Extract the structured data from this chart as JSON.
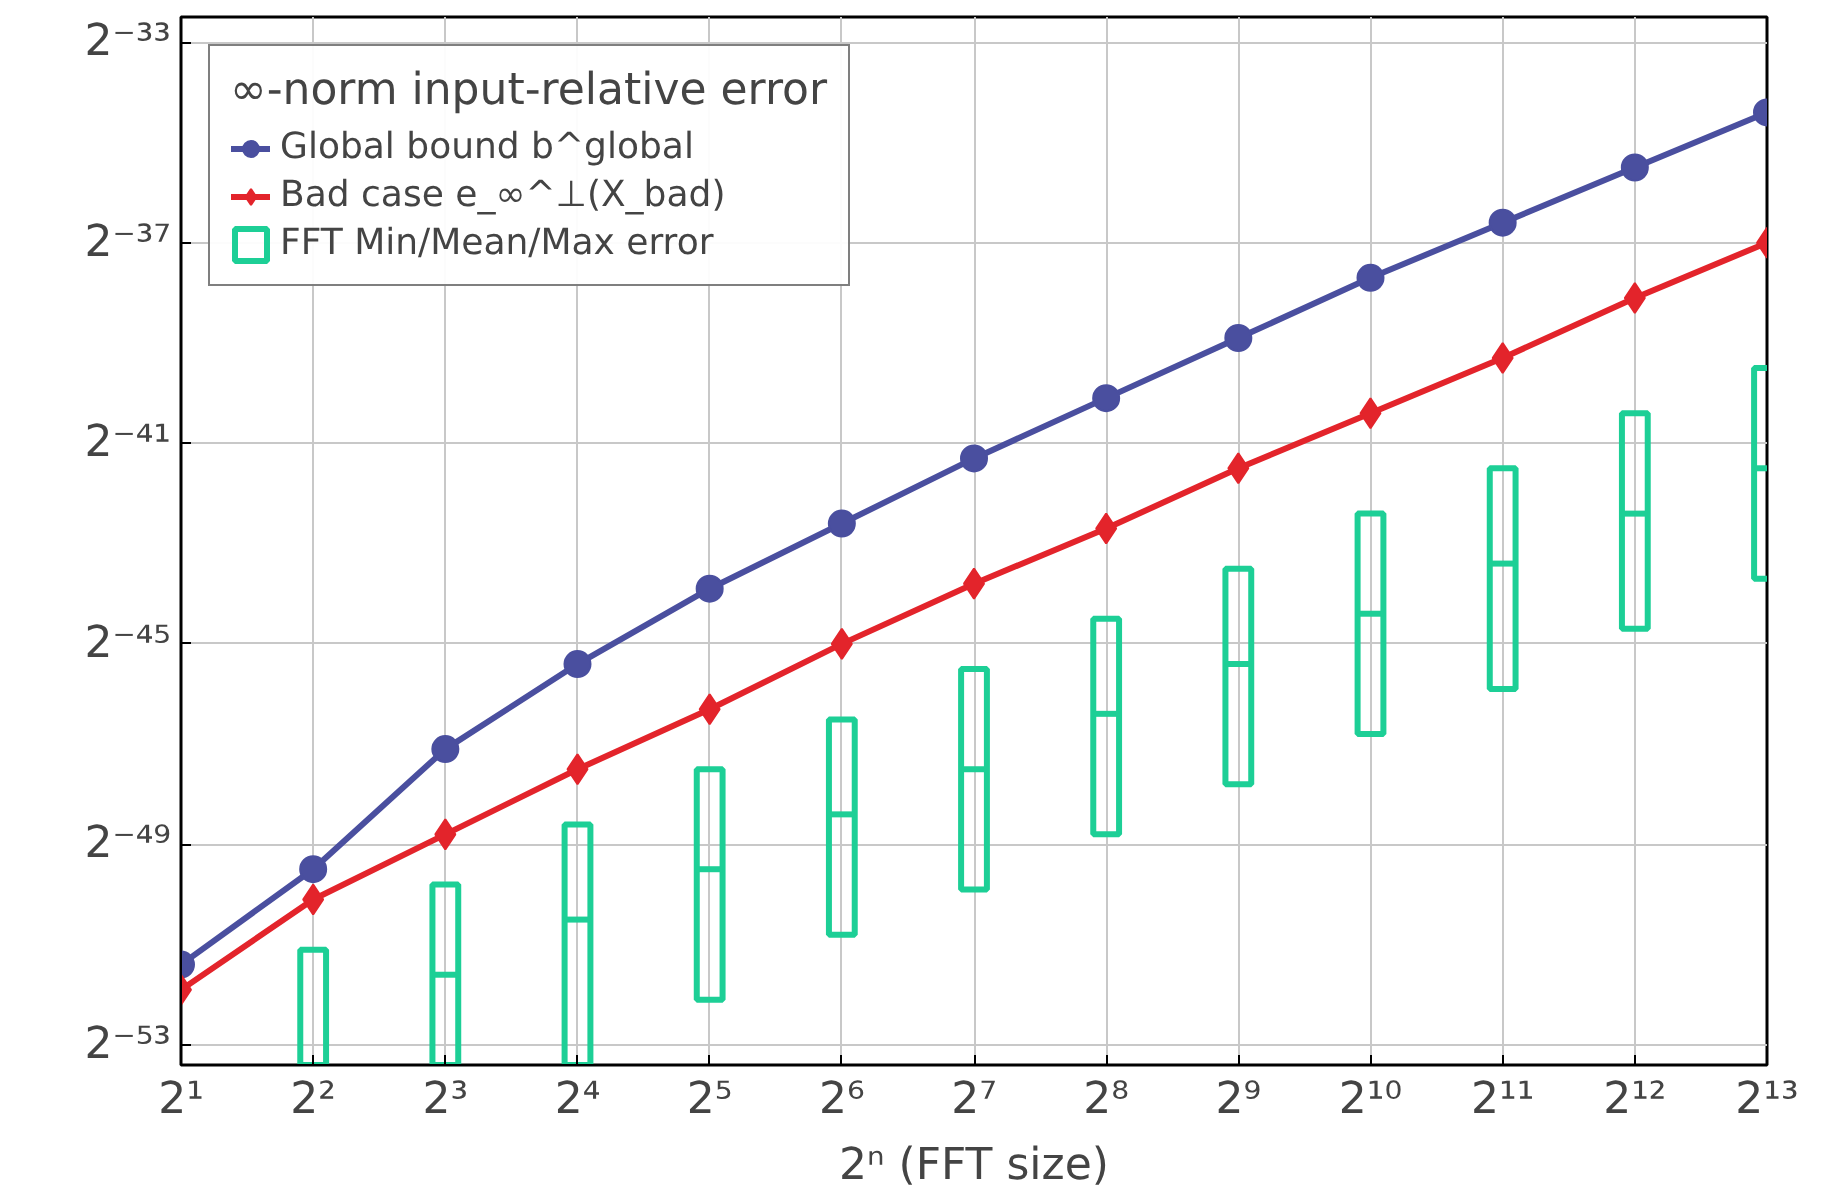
{
  "chart_data": {
    "type": "line",
    "xlabel": "2ⁿ (FFT size)",
    "legend_title": "∞-norm input-relative error",
    "legend": "top left",
    "grid": true,
    "line_style": "solid",
    "log": "xy",
    "x": [
      2,
      4,
      8,
      16,
      32,
      64,
      128,
      256,
      512,
      1024,
      2048,
      4096,
      8192
    ],
    "xlim": [
      2,
      8192
    ],
    "xticks": [
      {
        "value": 2,
        "label": "2¹"
      },
      {
        "value": 4,
        "label": "2²"
      },
      {
        "value": 8,
        "label": "2³"
      },
      {
        "value": 16,
        "label": "2⁴"
      },
      {
        "value": 32,
        "label": "2⁵"
      },
      {
        "value": 64,
        "label": "2⁶"
      },
      {
        "value": 128,
        "label": "2⁷"
      },
      {
        "value": 256,
        "label": "2⁸"
      },
      {
        "value": 512,
        "label": "2⁹"
      },
      {
        "value": 1024,
        "label": "2¹⁰"
      },
      {
        "value": 2048,
        "label": "2¹¹"
      },
      {
        "value": 4096,
        "label": "2¹²"
      },
      {
        "value": 8192,
        "label": "2¹³"
      }
    ],
    "ylim": [
      8.41e-17,
      1.65e-10
    ],
    "yticks": [
      {
        "value": 1.1102230246251565e-16,
        "label": "2⁻⁵³"
      },
      {
        "value": 1.7763568394002505e-15,
        "label": "2⁻⁴⁹"
      },
      {
        "value": 2.842170943040401e-14,
        "label": "2⁻⁴⁵"
      },
      {
        "value": 4.547473508864641e-13,
        "label": "2⁻⁴¹"
      },
      {
        "value": 7.275957614183426e-12,
        "label": "2⁻³⁷"
      },
      {
        "value": 1.1641532182693481e-10,
        "label": "2⁻³³"
      }
    ],
    "series": [
      {
        "name": "Global bound b^global",
        "marker": "circle",
        "color": "#4a4f9f",
        "values": [
          3.37e-16,
          1.26e-15,
          6.63e-15,
          2.15e-14,
          6.09e-14,
          1.5e-13,
          3.69e-13,
          8.49e-13,
          1.95e-12,
          4.48e-12,
          9.6e-12,
          2.06e-11,
          4.41e-11
        ]
      },
      {
        "name": "Bad case e_∞^⊥(X_bad)",
        "marker": "diamond",
        "color": "#e3242b",
        "values": [
          2.38e-16,
          8.29e-16,
          2.04e-15,
          5.02e-15,
          1.15e-14,
          2.84e-14,
          6.53e-14,
          1.4e-13,
          3.22e-13,
          6.89e-13,
          1.48e-12,
          3.39e-12,
          7.28e-12
        ]
      },
      {
        "name": "FFT Min/Mean/Max error",
        "type": "box",
        "color": "#1dcf96",
        "boxes": [
          null,
          {
            "low": 8.41e-17,
            "q1": 8.41e-17,
            "q3": 4.14e-16,
            "high": 4.14e-16,
            "mean": null
          },
          {
            "low": 8.41e-17,
            "q1": 8.41e-17,
            "q3": 1.02e-15,
            "high": 1.02e-15,
            "mean": 2.93e-16
          },
          {
            "low": 8.41e-17,
            "q1": 8.41e-17,
            "q3": 2.34e-15,
            "high": 2.34e-15,
            "mean": 6.28e-16
          },
          {
            "low": 2.07e-16,
            "q1": 2.07e-16,
            "q3": 5.02e-15,
            "high": 5.02e-15,
            "mean": 1.26e-15
          },
          {
            "low": 5.1e-16,
            "q1": 5.1e-16,
            "q3": 1e-14,
            "high": 1e-14,
            "mean": 2.69e-15
          },
          {
            "low": 9.52e-16,
            "q1": 9.52e-16,
            "q3": 2.01e-14,
            "high": 2.01e-14,
            "mean": 5.02e-15
          },
          {
            "low": 2.04e-15,
            "q1": 2.04e-15,
            "q3": 4.02e-14,
            "high": 4.02e-14,
            "mean": 1.08e-14
          },
          {
            "low": 4.08e-15,
            "q1": 4.08e-15,
            "q3": 8.04e-14,
            "high": 8.04e-14,
            "mean": 2.15e-14
          },
          {
            "low": 8.16e-15,
            "q1": 8.16e-15,
            "q3": 1.72e-13,
            "high": 1.72e-13,
            "mean": 4.31e-14
          },
          {
            "low": 1.52e-14,
            "q1": 1.52e-14,
            "q3": 3.22e-13,
            "high": 3.22e-13,
            "mean": 8.62e-14
          },
          {
            "low": 3.5e-14,
            "q1": 3.5e-14,
            "q3": 6.89e-13,
            "high": 6.89e-13,
            "mean": 1.72e-13
          },
          {
            "low": 7e-14,
            "q1": 7e-14,
            "q3": 1.29e-12,
            "high": 1.29e-12,
            "mean": 3.22e-13
          }
        ]
      }
    ]
  }
}
